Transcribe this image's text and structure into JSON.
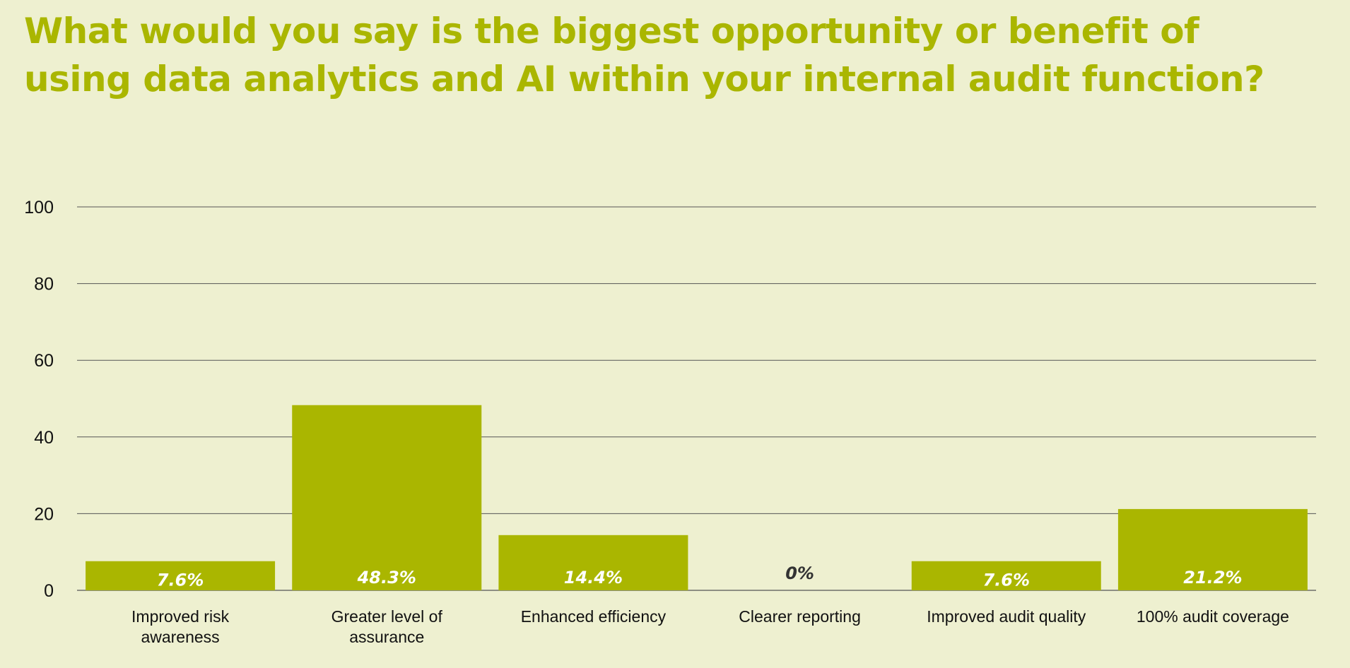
{
  "title_lines": [
    "What would you say is the biggest opportunity or benefit of",
    "using data analytics and AI within your internal audit function?"
  ],
  "colors": {
    "background": "#eef0d0",
    "bar": "#aab600",
    "title": "#aab600",
    "grid": "#555555",
    "bar_label": "#ffffff",
    "zero_label": "#333333"
  },
  "chart_data": {
    "type": "bar",
    "title": "What would you say is the biggest opportunity or benefit of using data analytics and AI within your internal audit function?",
    "categories": [
      "Improved risk awareness",
      "Greater level of assurance",
      "Enhanced efficiency",
      "Clearer reporting",
      "Improved audit quality",
      "100% audit coverage"
    ],
    "category_label_lines": [
      [
        "Improved risk",
        "awareness"
      ],
      [
        "Greater level of",
        "assurance"
      ],
      [
        "Enhanced efficiency"
      ],
      [
        "Clearer reporting"
      ],
      [
        "Improved audit quality"
      ],
      [
        "100% audit coverage"
      ]
    ],
    "values": [
      7.6,
      48.3,
      14.4,
      0,
      7.6,
      21.2
    ],
    "data_labels": [
      "7.6%",
      "48.3%",
      "14.4%",
      "0%",
      "7.6%",
      "21.2%"
    ],
    "xlabel": "",
    "ylabel": "",
    "ylim": [
      0,
      100
    ],
    "yticks": [
      0,
      20,
      40,
      60,
      80,
      100
    ],
    "grid": true,
    "legend": "none"
  }
}
